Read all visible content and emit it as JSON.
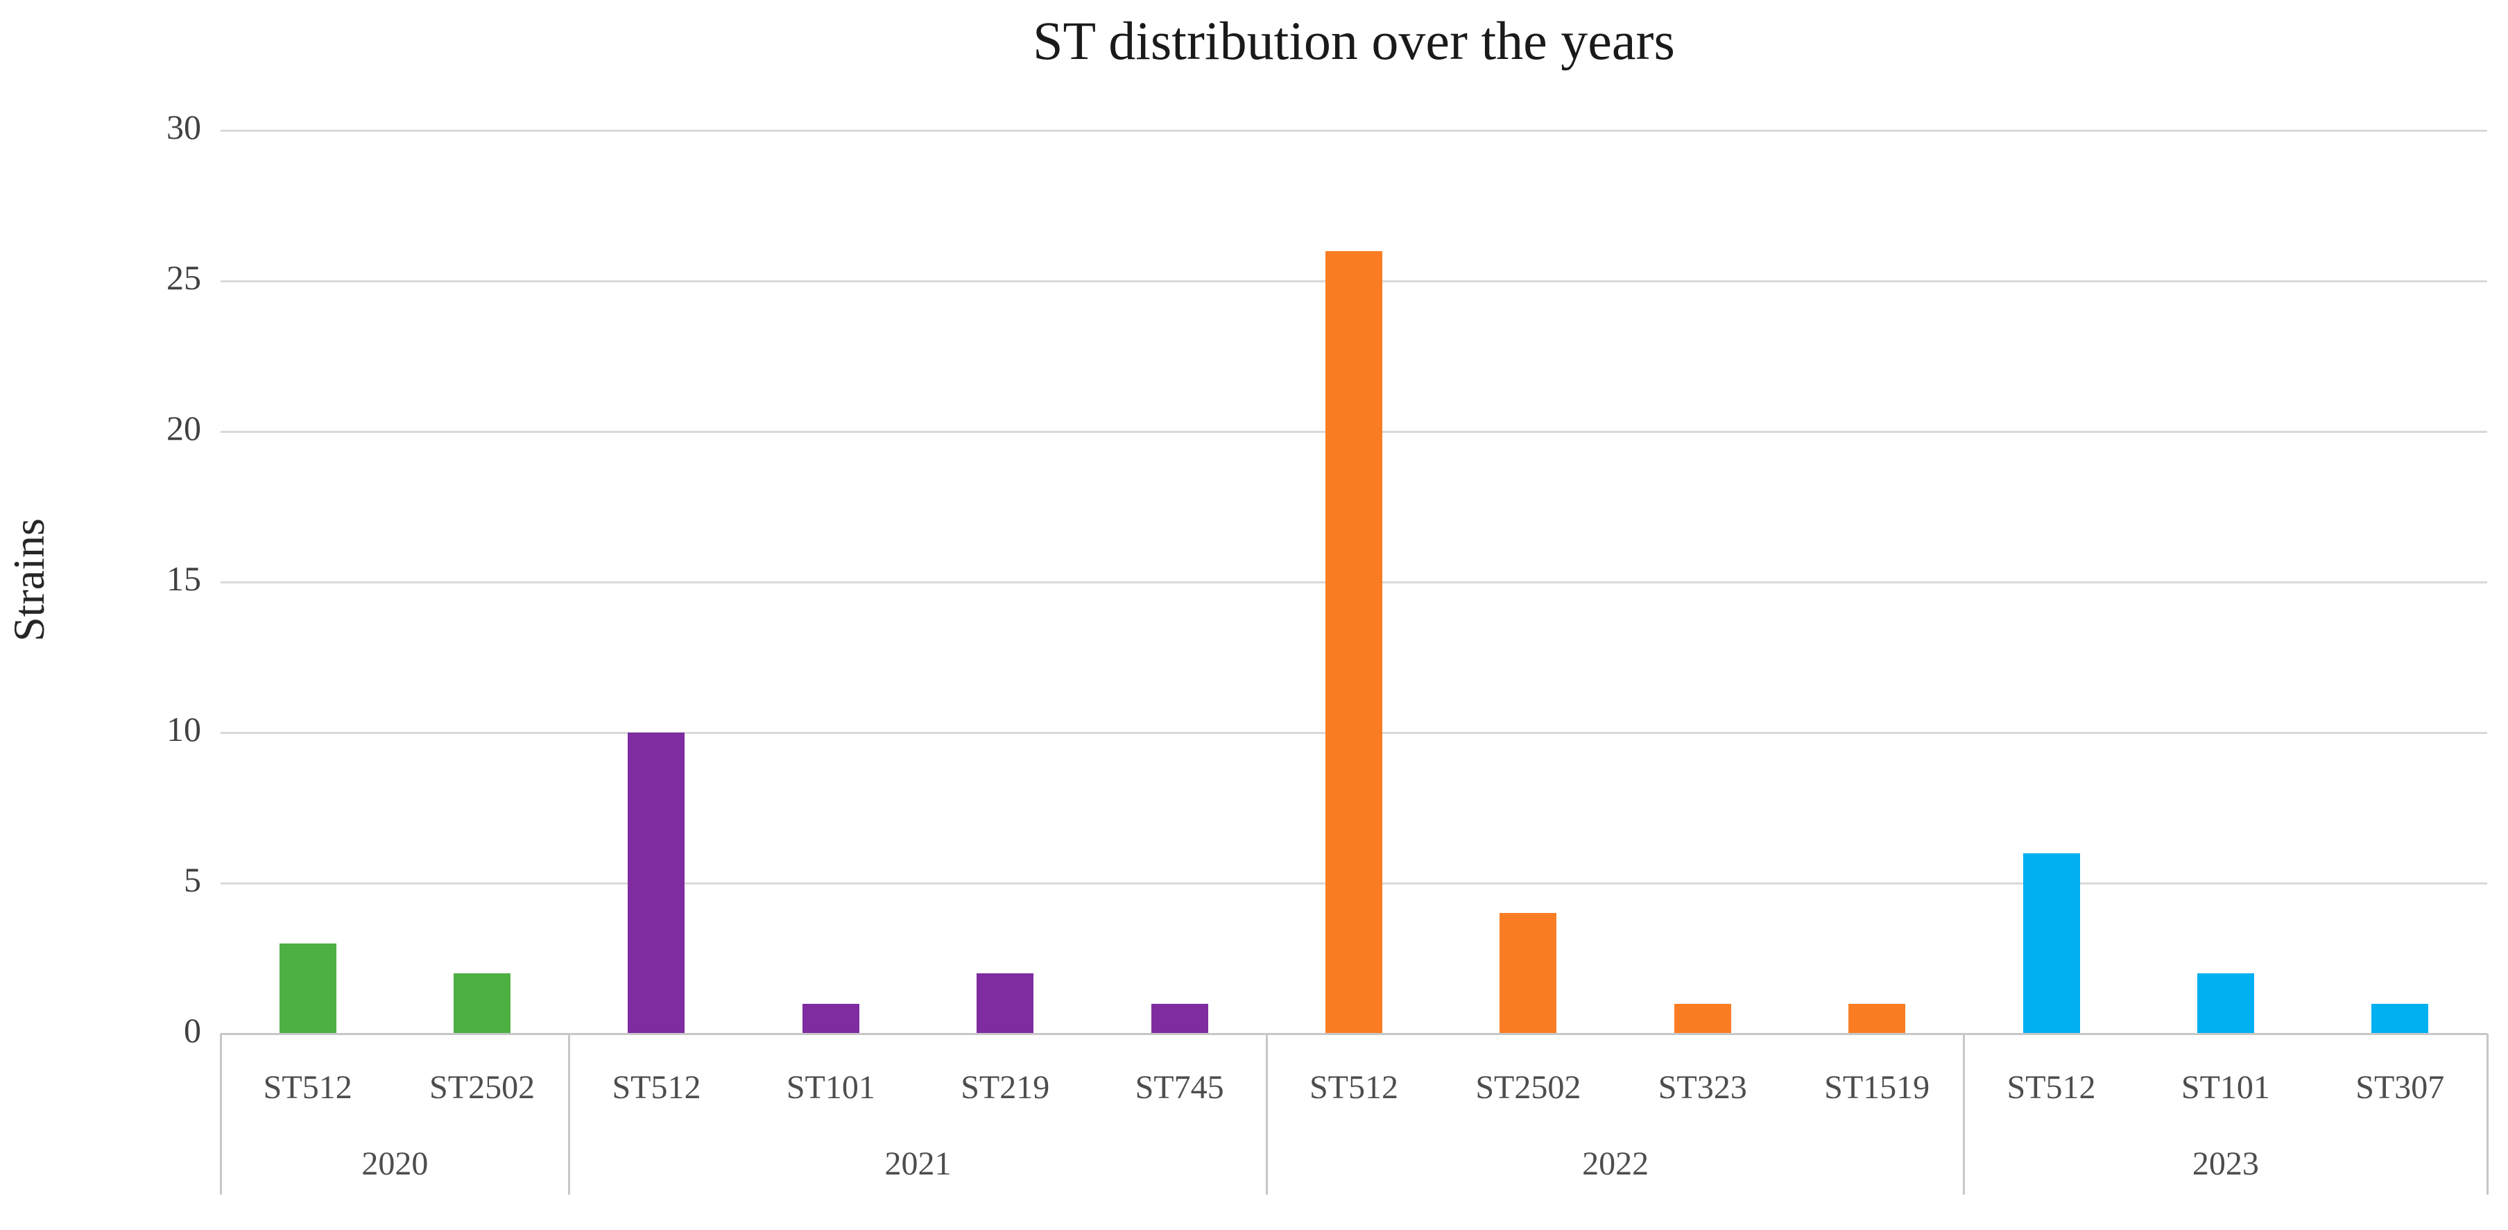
{
  "title": "ST distribution over the years",
  "y_axis": {
    "label": "Strains",
    "tick_labels": [
      "0",
      "5",
      "10",
      "15",
      "20",
      "25",
      "30"
    ]
  },
  "colors": {
    "year_2020": "#4CB043",
    "year_2021": "#7F2CA1",
    "year_2022": "#FB7D23",
    "year_2023": "#00B0F0",
    "gridline": "#D9D9D9",
    "axis_border": "#C7C7C7",
    "tick_text": "#404040",
    "category_text": "#4D4D4D",
    "title_text": "#1A1A1A"
  },
  "chart_data": {
    "type": "bar",
    "title": "ST distribution over the years",
    "xlabel": "",
    "ylabel": "Strains",
    "ylim": [
      0,
      30
    ],
    "yticks": [
      0,
      5,
      10,
      15,
      20,
      25,
      30
    ],
    "grid": true,
    "legend": "none",
    "groups": [
      {
        "year": "2020",
        "color": "#4CB043",
        "bars": [
          {
            "label": "ST512",
            "value": 3
          },
          {
            "label": "ST2502",
            "value": 2
          }
        ]
      },
      {
        "year": "2021",
        "color": "#7F2CA1",
        "bars": [
          {
            "label": "ST512",
            "value": 10
          },
          {
            "label": "ST101",
            "value": 1
          },
          {
            "label": "ST219",
            "value": 2
          },
          {
            "label": "ST745",
            "value": 1
          }
        ]
      },
      {
        "year": "2022",
        "color": "#FB7D23",
        "bars": [
          {
            "label": "ST512",
            "value": 26
          },
          {
            "label": "ST2502",
            "value": 4
          },
          {
            "label": "ST323",
            "value": 1
          },
          {
            "label": "ST1519",
            "value": 1
          }
        ]
      },
      {
        "year": "2023",
        "color": "#00B0F0",
        "bars": [
          {
            "label": "ST512",
            "value": 6
          },
          {
            "label": "ST101",
            "value": 2
          },
          {
            "label": "ST307",
            "value": 1
          }
        ]
      }
    ]
  }
}
